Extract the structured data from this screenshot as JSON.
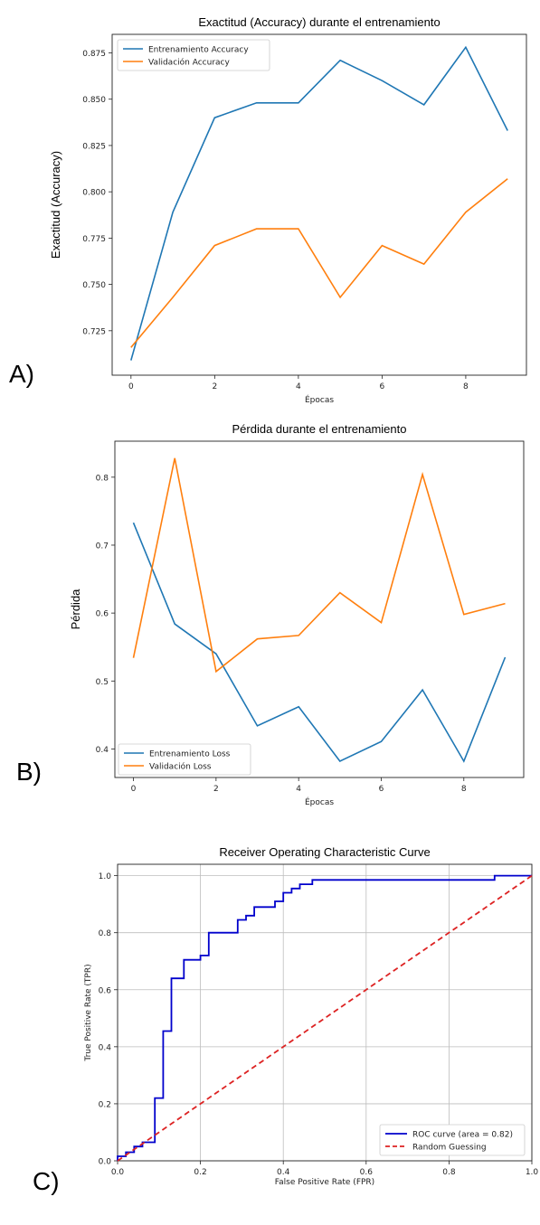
{
  "panel_labels": [
    "A)",
    "B)",
    "C)"
  ],
  "chart_data": [
    {
      "type": "line",
      "title": "Exactitud (Accuracy) durante el entrenamiento",
      "xlabel": "Épocas",
      "ylabel": "Exactitud (Accuracy)",
      "x": [
        0,
        1,
        2,
        3,
        4,
        5,
        6,
        7,
        8,
        9
      ],
      "xticks": [
        "0",
        "2",
        "4",
        "6",
        "8"
      ],
      "yticks": [
        "0.725",
        "0.750",
        "0.775",
        "0.800",
        "0.825",
        "0.850",
        "0.875"
      ],
      "xlim": [
        -0.45,
        9.45
      ],
      "ylim": [
        0.701,
        0.885
      ],
      "legend": "top-left",
      "grid": false,
      "series": [
        {
          "name": "Entrenamiento Accuracy",
          "color": "#1f77b4",
          "values": [
            0.709,
            0.789,
            0.84,
            0.848,
            0.848,
            0.871,
            0.86,
            0.847,
            0.878,
            0.833
          ]
        },
        {
          "name": "Validación Accuracy",
          "color": "#ff7f0e",
          "values": [
            0.716,
            0.743,
            0.771,
            0.78,
            0.78,
            0.743,
            0.771,
            0.761,
            0.789,
            0.807
          ]
        }
      ]
    },
    {
      "type": "line",
      "title": "Pérdida durante el entrenamiento",
      "xlabel": "Épocas",
      "ylabel": "Pérdida",
      "x": [
        0,
        1,
        2,
        3,
        4,
        5,
        6,
        7,
        8,
        9
      ],
      "xticks": [
        "0",
        "2",
        "4",
        "6",
        "8"
      ],
      "yticks": [
        "0.4",
        "0.5",
        "0.6",
        "0.7",
        "0.8"
      ],
      "xlim": [
        -0.45,
        9.45
      ],
      "ylim": [
        0.358,
        0.853
      ],
      "legend": "bottom-left",
      "grid": false,
      "series": [
        {
          "name": "Entrenamiento Loss",
          "color": "#1f77b4",
          "values": [
            0.733,
            0.584,
            0.54,
            0.434,
            0.462,
            0.382,
            0.411,
            0.487,
            0.382,
            0.535
          ]
        },
        {
          "name": "Validación Loss",
          "color": "#ff7f0e",
          "values": [
            0.534,
            0.828,
            0.514,
            0.562,
            0.567,
            0.63,
            0.586,
            0.804,
            0.598,
            0.614
          ]
        }
      ]
    },
    {
      "type": "line",
      "title": "Receiver Operating Characteristic Curve",
      "xlabel": "False Positive Rate (FPR)",
      "ylabel": "True Positive Rate (TPR)",
      "xticks": [
        "0.0",
        "0.2",
        "0.4",
        "0.6",
        "0.8",
        "1.0"
      ],
      "yticks": [
        "0.0",
        "0.2",
        "0.4",
        "0.6",
        "0.8",
        "1.0"
      ],
      "xlim": [
        0,
        1
      ],
      "ylim": [
        0,
        1.04
      ],
      "legend": "bottom-right",
      "grid": true,
      "series": [
        {
          "name": "ROC curve (area = 0.82)",
          "color": "#0000cc",
          "style": "solid",
          "x": [
            0,
            0,
            0.02,
            0.02,
            0.04,
            0.04,
            0.06,
            0.06,
            0.09,
            0.09,
            0.11,
            0.11,
            0.13,
            0.13,
            0.16,
            0.16,
            0.2,
            0.2,
            0.22,
            0.22,
            0.29,
            0.29,
            0.31,
            0.31,
            0.33,
            0.33,
            0.38,
            0.38,
            0.4,
            0.4,
            0.42,
            0.42,
            0.44,
            0.44,
            0.47,
            0.47,
            0.91,
            0.91,
            1.0
          ],
          "y": [
            0,
            0.016,
            0.016,
            0.03,
            0.03,
            0.05,
            0.05,
            0.065,
            0.065,
            0.22,
            0.22,
            0.455,
            0.455,
            0.64,
            0.64,
            0.705,
            0.705,
            0.72,
            0.72,
            0.8,
            0.8,
            0.845,
            0.845,
            0.86,
            0.86,
            0.89,
            0.89,
            0.91,
            0.91,
            0.94,
            0.94,
            0.955,
            0.955,
            0.97,
            0.97,
            0.985,
            0.985,
            1.0,
            1.0
          ]
        },
        {
          "name": "Random Guessing",
          "color": "#dd2222",
          "style": "dashed",
          "x": [
            0,
            1
          ],
          "y": [
            0,
            1
          ]
        }
      ]
    }
  ]
}
